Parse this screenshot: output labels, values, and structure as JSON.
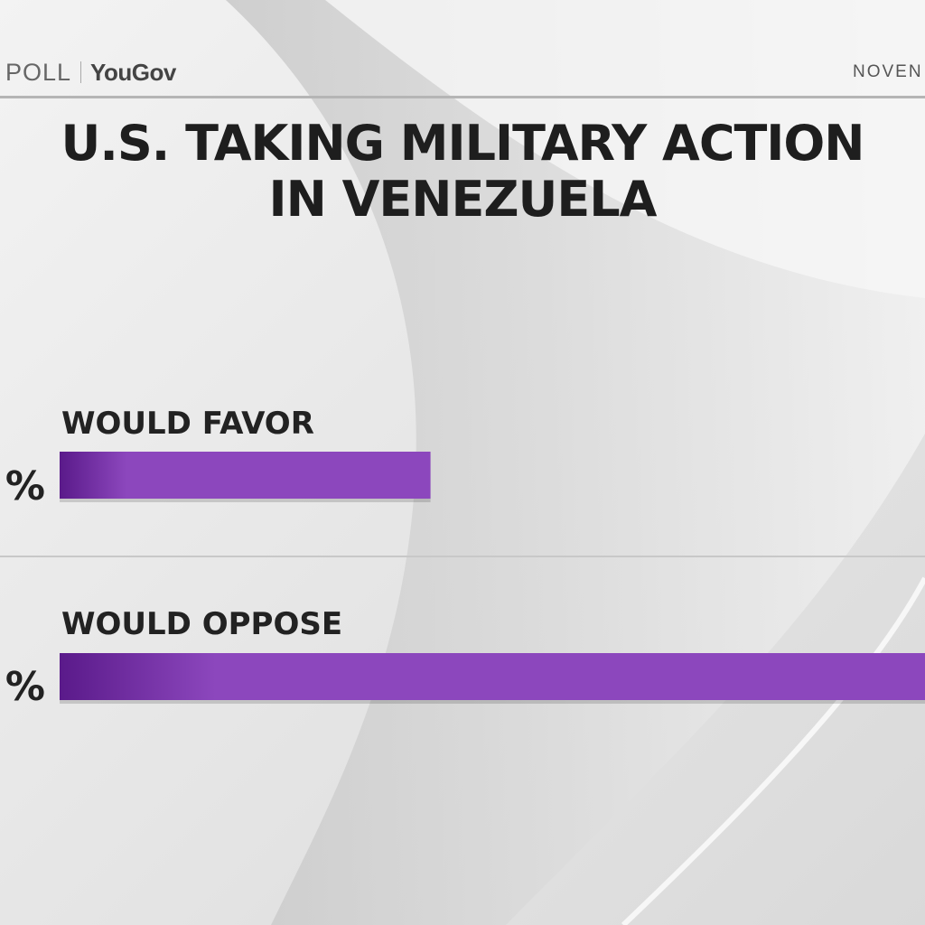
{
  "header": {
    "poll_label": "POLL",
    "brand": "YouGov",
    "date": "NOVEN"
  },
  "colors": {
    "bar": "#8c47bd",
    "bar_dark": "#5a1a8a",
    "text": "#1e1e1e",
    "background": "#ececec"
  },
  "chart_data": {
    "type": "bar",
    "orientation": "horizontal",
    "title_lines": [
      "U.S. TAKING MILITARY ACTION",
      "IN VENEZUELA"
    ],
    "categories": [
      "WOULD FAVOR",
      "WOULD OPPOSE"
    ],
    "values": [
      30,
      70
    ],
    "value_labels": [
      "%",
      "%"
    ],
    "xlim": [
      0,
      70
    ]
  }
}
